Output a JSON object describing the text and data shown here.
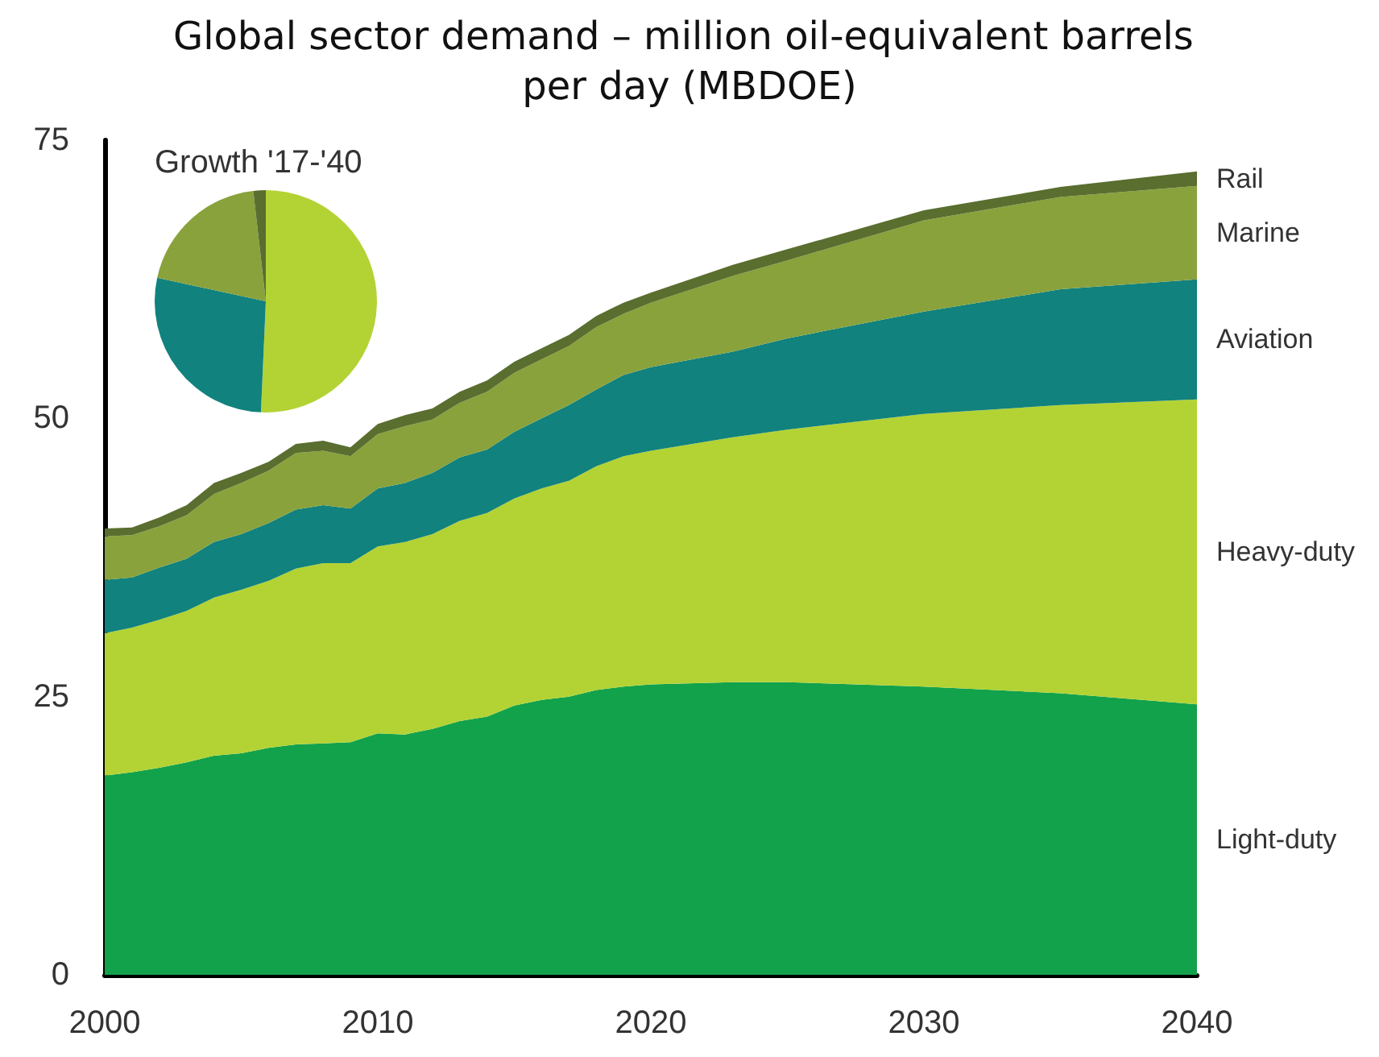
{
  "chart_data": [
    {
      "type": "area",
      "title": "Global sector demand – million oil-equivalent barrels per day (MBDOE)",
      "stacked": true,
      "x": [
        2000,
        2001,
        2002,
        2003,
        2004,
        2005,
        2006,
        2007,
        2008,
        2009,
        2010,
        2011,
        2012,
        2013,
        2014,
        2015,
        2016,
        2017,
        2018,
        2019,
        2020,
        2023,
        2025,
        2030,
        2035,
        2040
      ],
      "xlim": [
        2000,
        2040
      ],
      "xticks": [
        2000,
        2010,
        2020,
        2030,
        2040
      ],
      "ylim": [
        0,
        75
      ],
      "yticks": [
        0,
        25,
        50,
        75
      ],
      "series": [
        {
          "name": "Light-duty",
          "color": "#12a24b",
          "values": [
            17.9,
            18.2,
            18.6,
            19.1,
            19.7,
            19.9,
            20.4,
            20.7,
            20.8,
            20.9,
            21.7,
            21.6,
            22.1,
            22.8,
            23.2,
            24.2,
            24.7,
            25.0,
            25.6,
            25.9,
            26.1,
            26.3,
            26.3,
            25.9,
            25.3,
            24.3
          ]
        },
        {
          "name": "Heavy-duty",
          "color": "#b3d334",
          "values": [
            12.8,
            13.0,
            13.3,
            13.6,
            14.2,
            14.7,
            15.0,
            15.8,
            16.2,
            16.1,
            16.8,
            17.3,
            17.5,
            18.0,
            18.3,
            18.6,
            19.0,
            19.4,
            20.1,
            20.7,
            21.0,
            22.0,
            22.7,
            24.5,
            25.9,
            27.4
          ]
        },
        {
          "name": "Aviation",
          "color": "#11827d",
          "values": [
            4.8,
            4.5,
            4.7,
            4.7,
            5.0,
            5.0,
            5.2,
            5.3,
            5.2,
            4.9,
            5.2,
            5.3,
            5.5,
            5.7,
            5.7,
            6.0,
            6.3,
            6.8,
            6.9,
            7.3,
            7.5,
            7.7,
            8.2,
            9.2,
            10.4,
            10.8
          ]
        },
        {
          "name": "Marine",
          "color": "#89a23c",
          "values": [
            3.9,
            3.8,
            3.7,
            3.9,
            4.3,
            4.6,
            4.7,
            5.1,
            4.9,
            4.7,
            4.9,
            5.1,
            4.8,
            4.9,
            5.2,
            5.3,
            5.3,
            5.3,
            5.6,
            5.5,
            5.8,
            6.8,
            7.0,
            8.2,
            8.3,
            8.4
          ]
        },
        {
          "name": "Rail",
          "color": "#5a6e2f",
          "values": [
            0.7,
            0.7,
            0.8,
            0.9,
            1.0,
            0.9,
            0.8,
            0.8,
            0.9,
            0.8,
            0.9,
            1.0,
            1.0,
            1.0,
            1.0,
            1.0,
            1.0,
            1.0,
            1.0,
            1.0,
            0.9,
            1.0,
            1.0,
            0.9,
            0.9,
            1.3
          ]
        }
      ]
    },
    {
      "type": "pie",
      "title": "Growth '17-'40",
      "categories": [
        null,
        null,
        null,
        null
      ],
      "values": [
        50.7,
        27.7,
        19.8,
        1.8
      ],
      "colors": [
        "#b3d334",
        "#11827d",
        "#89a23c",
        "#5a6e2f"
      ]
    }
  ]
}
